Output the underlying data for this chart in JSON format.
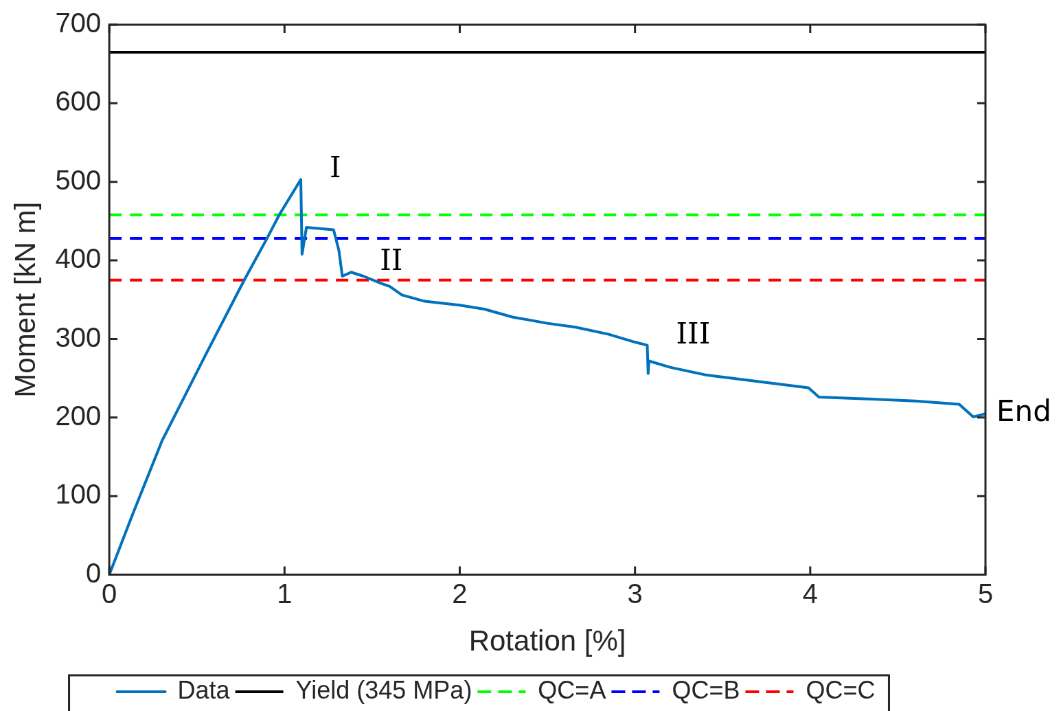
{
  "chart_data": {
    "type": "line",
    "xlabel": "Rotation [%]",
    "ylabel": "Moment [kN m]",
    "xlim": [
      0,
      5
    ],
    "ylim": [
      0,
      700
    ],
    "xticks": [
      0,
      1,
      2,
      3,
      4,
      5
    ],
    "yticks": [
      0,
      100,
      200,
      300,
      400,
      500,
      600,
      700
    ],
    "grid": false,
    "legend": "bottom",
    "marker": "none",
    "line_style": "solid",
    "series": [
      {
        "name": "Data",
        "color": "#0072bd",
        "x": [
          0,
          0.13,
          0.3,
          0.55,
          0.77,
          0.9,
          0.97,
          1.093,
          1.1,
          1.125,
          1.28,
          1.31,
          1.33,
          1.38,
          1.45,
          1.55,
          1.6,
          1.67,
          1.8,
          2.0,
          2.14,
          2.3,
          2.5,
          2.66,
          2.85,
          3.0,
          3.07,
          3.075,
          3.08,
          3.2,
          3.41,
          3.7,
          3.99,
          4.05,
          4.3,
          4.6,
          4.85,
          4.93,
          4.97,
          5.0
        ],
        "values": [
          0,
          75,
          170,
          280,
          375,
          428,
          458,
          503,
          408,
          442,
          439,
          413,
          380,
          385,
          380,
          371,
          367,
          356,
          348,
          343,
          338,
          328,
          320,
          315,
          306,
          296,
          292,
          256,
          272,
          264,
          254,
          246,
          238,
          226,
          224,
          221,
          217,
          201,
          203,
          205
        ]
      }
    ],
    "ref_lines": [
      {
        "axis": "y",
        "value": 665,
        "label": "Yield (345 MPa)",
        "color": "#000000",
        "line_style": "solid"
      },
      {
        "axis": "y",
        "value": 458,
        "label": "QC=A",
        "color": "#00ff00",
        "line_style": "dashed"
      },
      {
        "axis": "y",
        "value": 428,
        "label": "QC=B",
        "color": "#0000ff",
        "line_style": "dashed"
      },
      {
        "axis": "y",
        "value": 375,
        "label": "QC=C",
        "color": "#ff0000",
        "line_style": "dashed"
      }
    ],
    "annotations": [
      {
        "text": "I",
        "x": 1.093,
        "y": 503
      },
      {
        "text": "II",
        "x": 1.38,
        "y": 385
      },
      {
        "text": "III",
        "x": 3.07,
        "y": 292
      },
      {
        "text": "End",
        "x": 5,
        "y": 205
      }
    ]
  }
}
